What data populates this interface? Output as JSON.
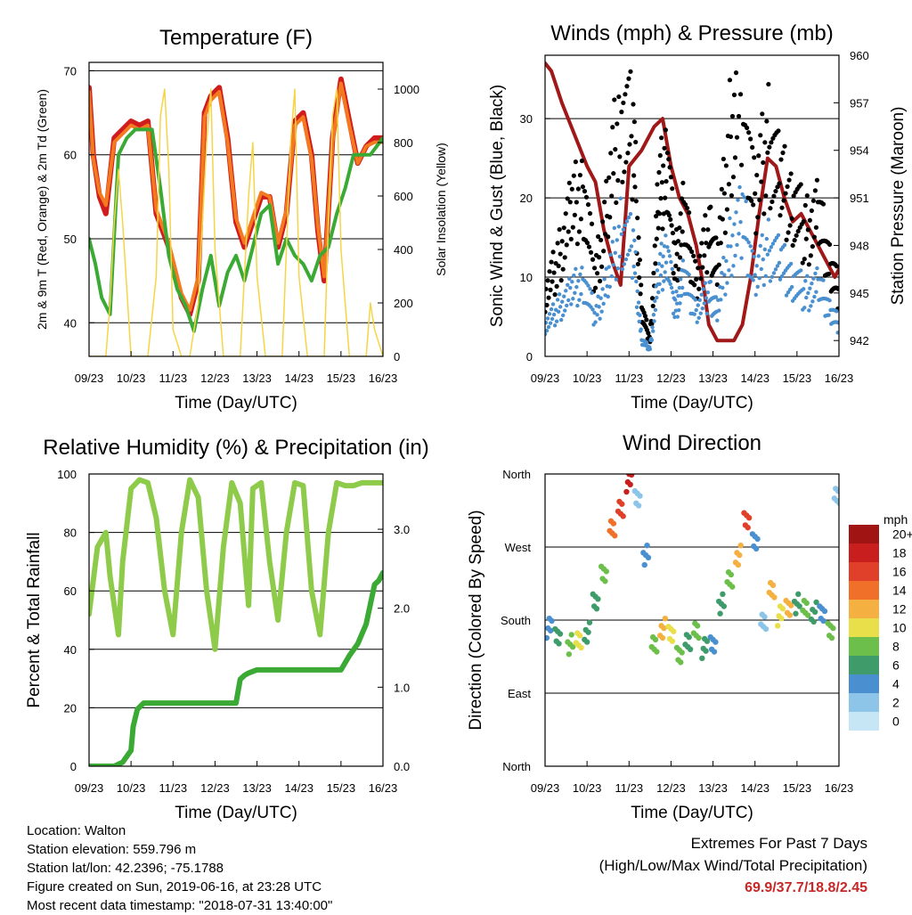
{
  "footer": {
    "location": "Location: Walton",
    "elevation": "Station elevation: 559.796 m",
    "latlon": "Station lat/lon: 42.2396; -75.1788",
    "created": "Figure created on Sun, 2019-06-16, at 23:28 UTC",
    "recent": "Most recent data timestamp: \"2018-07-31 13:40:00\""
  },
  "extremes": {
    "title": "Extremes For Past 7 Days",
    "subtitle": "(High/Low/Max Wind/Total Precipitation)",
    "values": "69.9/37.7/18.8/2.45",
    "color": "#c62828"
  },
  "chart_data": [
    {
      "type": "line",
      "title": "Temperature (F)",
      "xlabel": "Time (Day/UTC)",
      "ylabel_left": "2m & 9m T (Red, Orange) & 2m Td (Green)",
      "ylabel_right": "Solar Insolation (Yellow)",
      "x_ticks": [
        "09/23",
        "10/23",
        "11/23",
        "12/23",
        "13/23",
        "14/23",
        "15/23",
        "16/23"
      ],
      "ylim_left": [
        36,
        71
      ],
      "ylim_right": [
        0,
        1100
      ],
      "yticks_left": [
        40,
        50,
        60,
        70
      ],
      "yticks_right": [
        0,
        200,
        400,
        600,
        800,
        1000
      ],
      "hlines_left": [
        40,
        50,
        60,
        70
      ],
      "series": [
        {
          "name": "2m T",
          "axis": "left",
          "color": "#d01c1c",
          "x": [
            0,
            0.1,
            0.25,
            0.4,
            0.6,
            0.8,
            1.0,
            1.2,
            1.4,
            1.6,
            1.9,
            2.2,
            2.4,
            2.6,
            2.75,
            2.9,
            3.1,
            3.3,
            3.5,
            3.7,
            3.9,
            4.1,
            4.3,
            4.5,
            4.7,
            4.9,
            5.1,
            5.3,
            5.45,
            5.6,
            5.8,
            6.0,
            6.2,
            6.4,
            6.6,
            6.8,
            7.0
          ],
          "y": [
            68,
            60,
            55,
            53,
            62,
            63,
            64,
            63.5,
            64,
            53,
            49,
            43,
            41,
            45,
            65,
            67,
            68,
            62,
            52,
            49,
            52,
            55,
            55,
            49,
            53,
            64,
            65,
            60,
            51,
            45,
            62,
            69,
            64,
            59,
            61,
            62,
            62
          ]
        },
        {
          "name": "9m T",
          "axis": "left",
          "color": "#f47a1f",
          "x": [
            0,
            0.1,
            0.25,
            0.4,
            0.6,
            0.8,
            1.0,
            1.2,
            1.4,
            1.6,
            1.9,
            2.2,
            2.4,
            2.6,
            2.75,
            2.9,
            3.1,
            3.3,
            3.5,
            3.7,
            3.9,
            4.1,
            4.3,
            4.5,
            4.7,
            4.9,
            5.1,
            5.3,
            5.45,
            5.6,
            5.8,
            6.0,
            6.2,
            6.4,
            6.6,
            6.8,
            7.0
          ],
          "y": [
            67.5,
            59.5,
            55.5,
            54,
            61.5,
            62.5,
            63.5,
            63,
            63.5,
            53.5,
            49.5,
            43.5,
            41.5,
            45.5,
            64.5,
            66.5,
            67.5,
            61.5,
            52.5,
            49.5,
            52.5,
            55.5,
            55,
            49.5,
            53.5,
            63.5,
            64.5,
            59.5,
            51.5,
            45.5,
            61.5,
            68.5,
            63.5,
            59,
            61,
            61.5,
            61.5
          ]
        },
        {
          "name": "2m Td",
          "axis": "left",
          "color": "#3aaa35",
          "x": [
            0,
            0.15,
            0.3,
            0.5,
            0.7,
            0.9,
            1.1,
            1.3,
            1.5,
            1.7,
            1.9,
            2.1,
            2.3,
            2.5,
            2.7,
            2.9,
            3.1,
            3.3,
            3.5,
            3.7,
            3.9,
            4.1,
            4.3,
            4.5,
            4.7,
            4.9,
            5.1,
            5.3,
            5.5,
            5.7,
            5.9,
            6.1,
            6.3,
            6.5,
            6.7,
            7.0
          ],
          "y": [
            50,
            47,
            43,
            41,
            60,
            62,
            63,
            63,
            63,
            56,
            48,
            44,
            42,
            39,
            44,
            48,
            42,
            46,
            48,
            45,
            49,
            53,
            54,
            47,
            50,
            48,
            47,
            45,
            48,
            49,
            53,
            56,
            60,
            60,
            60,
            62
          ]
        },
        {
          "name": "Solar Insolation",
          "axis": "right",
          "color": "#f5d547",
          "x": [
            0,
            0.2,
            0.4,
            0.5,
            0.6,
            0.7,
            0.8,
            1.0,
            1.2,
            1.4,
            1.6,
            1.7,
            1.8,
            1.9,
            2.0,
            2.2,
            2.4,
            2.6,
            2.7,
            2.8,
            2.9,
            3.0,
            3.2,
            3.4,
            3.6,
            3.7,
            3.8,
            3.9,
            4.0,
            4.2,
            4.4,
            4.6,
            4.7,
            4.8,
            4.9,
            5.0,
            5.2,
            5.4,
            5.6,
            5.7,
            5.8,
            5.9,
            6.0,
            6.2,
            6.4,
            6.6,
            6.7,
            6.8,
            7.0
          ],
          "y": [
            0,
            0,
            0,
            200,
            500,
            700,
            500,
            0,
            0,
            0,
            300,
            900,
            1000,
            700,
            100,
            0,
            0,
            200,
            500,
            800,
            1000,
            400,
            0,
            0,
            0,
            300,
            600,
            800,
            300,
            0,
            0,
            0,
            400,
            800,
            1000,
            300,
            0,
            0,
            0,
            500,
            900,
            1000,
            400,
            0,
            0,
            0,
            200,
            100,
            0
          ]
        }
      ]
    },
    {
      "type": "scatter",
      "title": "Winds (mph) & Pressure (mb)",
      "xlabel": "Time (Day/UTC)",
      "ylabel_left": "Sonic Wind & Gust (Blue, Black)",
      "ylabel_right": "Station Pressure (Maroon)",
      "x_ticks": [
        "09/23",
        "10/23",
        "11/23",
        "12/23",
        "13/23",
        "14/23",
        "15/23",
        "16/23"
      ],
      "ylim_left": [
        0,
        38
      ],
      "ylim_right": [
        941,
        960
      ],
      "yticks_left": [
        0,
        10,
        20,
        30
      ],
      "yticks_right": [
        942,
        945,
        948,
        951,
        954,
        957,
        960
      ],
      "hlines_left": [
        10,
        20,
        30
      ],
      "series": [
        {
          "name": "Station Pressure",
          "axis": "right",
          "color": "#a01818",
          "x": [
            0,
            0.15,
            0.4,
            0.7,
            1.0,
            1.2,
            1.4,
            1.6,
            1.8,
            2.0,
            2.3,
            2.6,
            2.8,
            3.0,
            3.2,
            3.4,
            3.6,
            3.8,
            3.9,
            4.1,
            4.3,
            4.5,
            4.7,
            4.9,
            5.1,
            5.3,
            5.5,
            5.7,
            5.9,
            6.1,
            6.3,
            6.5,
            6.7,
            6.9,
            7.0
          ],
          "y": [
            959.5,
            959,
            957,
            955,
            953,
            952,
            949,
            947,
            945.5,
            953,
            954,
            955.5,
            956,
            953,
            951,
            950,
            948,
            945,
            943,
            942,
            942,
            942,
            943,
            946,
            950,
            953.5,
            953,
            951,
            949.5,
            950,
            949,
            948,
            947,
            946,
            946.5
          ]
        },
        {
          "name": "Gust",
          "axis": "left",
          "color": "#000000",
          "x": [
            0,
            0.3,
            0.6,
            0.9,
            1.2,
            1.5,
            1.8,
            2.1,
            2.3,
            2.5,
            2.7,
            2.9,
            3.1,
            3.3,
            3.6,
            3.9,
            4.1,
            4.4,
            4.7,
            5.0,
            5.3,
            5.6,
            5.9,
            6.2,
            6.5,
            6.8,
            7.0
          ],
          "y": [
            8,
            12,
            18,
            22,
            10,
            20,
            32,
            28,
            6,
            2,
            20,
            26,
            12,
            18,
            10,
            16,
            12,
            28,
            35,
            20,
            28,
            22,
            20,
            16,
            18,
            12,
            8
          ]
        },
        {
          "name": "Wind",
          "axis": "left",
          "color": "#4a90d0",
          "x": [
            0,
            0.3,
            0.6,
            0.9,
            1.2,
            1.5,
            1.8,
            2.1,
            2.3,
            2.5,
            2.7,
            2.9,
            3.1,
            3.3,
            3.6,
            3.9,
            4.1,
            4.4,
            4.7,
            5.0,
            5.3,
            5.6,
            5.9,
            6.2,
            6.5,
            6.8,
            7.0
          ],
          "y": [
            4,
            6,
            8,
            10,
            5,
            10,
            16,
            14,
            2,
            1,
            10,
            14,
            6,
            10,
            6,
            8,
            6,
            14,
            18,
            10,
            14,
            12,
            10,
            8,
            9,
            6,
            4
          ]
        }
      ]
    },
    {
      "type": "line",
      "title": "Relative Humidity (%) & Precipitation (in)",
      "xlabel": "Time (Day/UTC)",
      "ylabel_left": "Percent & Total Rainfall",
      "x_ticks": [
        "09/23",
        "10/23",
        "11/23",
        "12/23",
        "13/23",
        "14/23",
        "15/23",
        "16/23"
      ],
      "ylim_left": [
        0,
        100
      ],
      "ylim_right": [
        0,
        3.7
      ],
      "yticks_left": [
        0,
        20,
        40,
        60,
        80,
        100
      ],
      "yticks_right": [
        "0.0",
        "1.0",
        "2.0",
        "3.0"
      ],
      "yticks_right_values": [
        0,
        1,
        2,
        3
      ],
      "hlines_left": [
        20,
        40,
        60,
        80
      ],
      "series": [
        {
          "name": "Relative Humidity",
          "axis": "left",
          "color": "#8fcb4a",
          "x": [
            0,
            0.2,
            0.4,
            0.5,
            0.6,
            0.7,
            0.8,
            1.0,
            1.2,
            1.4,
            1.6,
            1.8,
            2.0,
            2.2,
            2.4,
            2.6,
            2.8,
            3.0,
            3.2,
            3.4,
            3.6,
            3.8,
            3.9,
            4.1,
            4.3,
            4.5,
            4.7,
            4.9,
            5.1,
            5.3,
            5.5,
            5.7,
            5.9,
            6.1,
            6.3,
            6.5,
            6.7,
            7.0
          ],
          "y": [
            52,
            75,
            80,
            65,
            55,
            45,
            70,
            95,
            98,
            97,
            85,
            60,
            45,
            80,
            98,
            92,
            60,
            40,
            75,
            97,
            90,
            55,
            95,
            97,
            70,
            50,
            80,
            97,
            96,
            60,
            45,
            80,
            97,
            96,
            96,
            97,
            97,
            97
          ]
        },
        {
          "name": "Total Precipitation",
          "axis": "right",
          "color": "#3aaa35",
          "x": [
            0,
            0.6,
            0.8,
            1.0,
            1.05,
            1.15,
            1.3,
            2.0,
            3.5,
            3.6,
            3.7,
            3.8,
            4.0,
            4.5,
            6.0,
            6.2,
            6.4,
            6.6,
            6.8,
            6.9,
            7.0
          ],
          "y": [
            0,
            0,
            0.05,
            0.2,
            0.5,
            0.72,
            0.8,
            0.8,
            0.8,
            1.1,
            1.15,
            1.18,
            1.22,
            1.22,
            1.22,
            1.4,
            1.55,
            1.8,
            2.3,
            2.35,
            2.45
          ]
        }
      ]
    },
    {
      "type": "scatter",
      "title": "Wind Direction",
      "xlabel": "Time (Day/UTC)",
      "ylabel_left": "Direction (Colored By Speed)",
      "x_ticks": [
        "09/23",
        "10/23",
        "11/23",
        "12/23",
        "13/23",
        "14/23",
        "15/23",
        "16/23"
      ],
      "y_tick_labels": [
        "North",
        "East",
        "South",
        "West",
        "North"
      ],
      "y_tick_values": [
        0,
        90,
        180,
        270,
        360
      ],
      "ylim_left": [
        0,
        360
      ],
      "colorbar": {
        "title": "mph",
        "labels": [
          "0",
          "2",
          "4",
          "6",
          "8",
          "10",
          "12",
          "14",
          "16",
          "18",
          "20+"
        ],
        "colors": [
          "#c6e6f6",
          "#8cc5e8",
          "#4a90d0",
          "#3f9c6a",
          "#6cbf4a",
          "#e8df4a",
          "#f5b042",
          "#f0702a",
          "#e0402a",
          "#c81e1e",
          "#a01414"
        ]
      },
      "series": [
        {
          "name": "direction",
          "x": [
            0.1,
            0.3,
            0.6,
            0.8,
            1.0,
            1.2,
            1.4,
            1.6,
            1.8,
            2.0,
            2.2,
            2.4,
            2.6,
            2.8,
            3.0,
            3.2,
            3.4,
            3.6,
            3.8,
            4.0,
            4.2,
            4.4,
            4.6,
            4.8,
            5.0,
            5.2,
            5.4,
            5.6,
            5.8,
            6.0,
            6.2,
            6.4,
            6.6,
            6.8,
            6.95
          ],
          "y": [
            170,
            160,
            150,
            155,
            165,
            200,
            240,
            290,
            320,
            350,
            330,
            260,
            150,
            170,
            160,
            140,
            150,
            170,
            145,
            150,
            200,
            230,
            260,
            300,
            280,
            175,
            220,
            185,
            195,
            200,
            195,
            190,
            185,
            170,
            330
          ],
          "speed": [
            4,
            6,
            8,
            10,
            6,
            6,
            8,
            14,
            16,
            18,
            2,
            4,
            8,
            12,
            10,
            8,
            6,
            8,
            6,
            4,
            6,
            8,
            12,
            16,
            4,
            2,
            12,
            10,
            12,
            6,
            8,
            6,
            4,
            8,
            2
          ]
        }
      ]
    }
  ]
}
